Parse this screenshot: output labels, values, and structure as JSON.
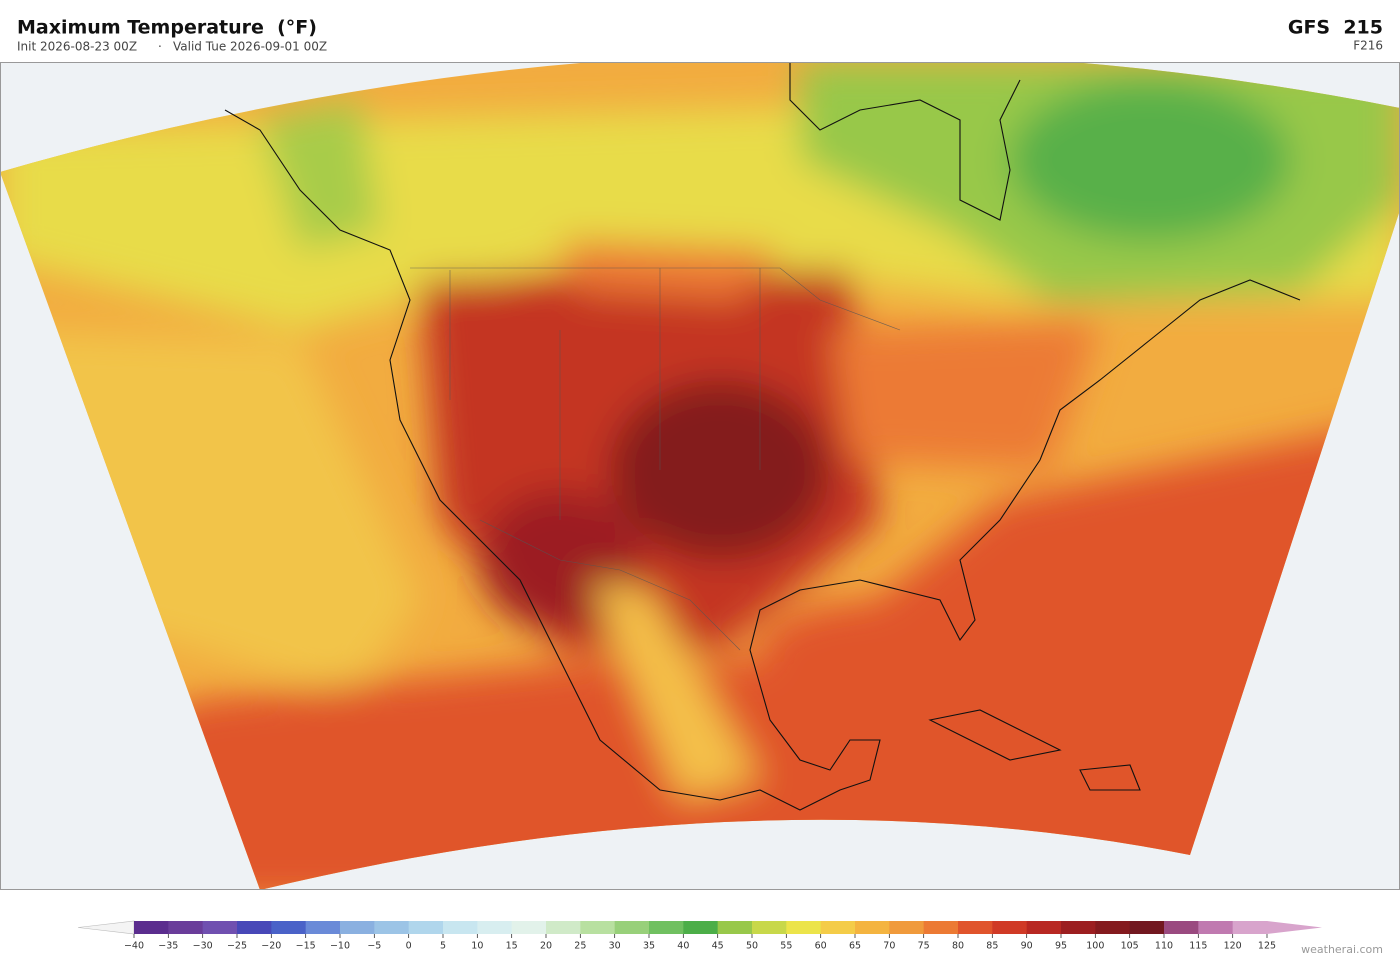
{
  "header": {
    "title": "Maximum Temperature  (°F)",
    "init": "Init 2026-08-23 00Z",
    "separator": "·",
    "valid": "Valid Tue 2026-09-01 00Z",
    "model": "GFS  215",
    "forecast_hour": "F216"
  },
  "colorbar": {
    "ticks": [
      {
        "value": -40,
        "label": "−40"
      },
      {
        "value": -35,
        "label": "−35"
      },
      {
        "value": -30,
        "label": "−30"
      },
      {
        "value": -25,
        "label": "−25"
      },
      {
        "value": -20,
        "label": "−20"
      },
      {
        "value": -15,
        "label": "−15"
      },
      {
        "value": -10,
        "label": "−10"
      },
      {
        "value": -5,
        "label": "−5"
      },
      0,
      5,
      10,
      15,
      20,
      25,
      30,
      35,
      40,
      45,
      50,
      55,
      60,
      65,
      70,
      75,
      80,
      85,
      90,
      95,
      100,
      105,
      110,
      115,
      120,
      125
    ],
    "colors": [
      "#5b2d8e",
      "#6a3d9a",
      "#7050b0",
      "#4848b8",
      "#4a62c8",
      "#6a8ad8",
      "#8ab0e0",
      "#9cc4e6",
      "#b0d6ec",
      "#c8e6f0",
      "#d8eef0",
      "#e2f2ea",
      "#d0eac8",
      "#b8e0a0",
      "#98d07a",
      "#70c060",
      "#4cae48",
      "#98c84a",
      "#c8d84a",
      "#ece44a",
      "#f4cc48",
      "#f4b440",
      "#f09a3c",
      "#ec7a34",
      "#e0542c",
      "#d03a26",
      "#b82822",
      "#9c1e20",
      "#841a1e",
      "#721820",
      "#9a4a80",
      "#c07ab0",
      "#d8a4cc"
    ]
  },
  "footer": {
    "credit": "weatherai.com"
  }
}
